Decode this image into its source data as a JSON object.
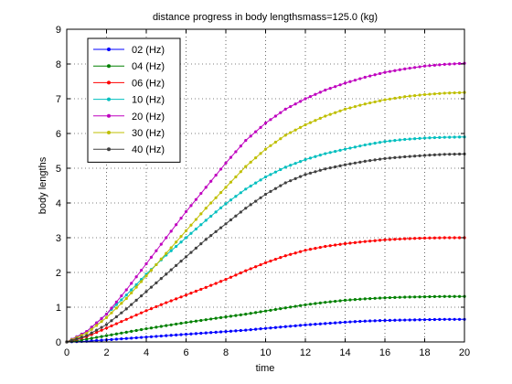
{
  "chart_data": {
    "type": "line",
    "title": "distance progress in body lengthsmass=125.0 (kg)",
    "xlabel": "time",
    "ylabel": "body lengths",
    "xlim": [
      0,
      20
    ],
    "ylim": [
      0,
      9
    ],
    "xticks": [
      "0",
      "2",
      "4",
      "6",
      "8",
      "10",
      "12",
      "14",
      "16",
      "18",
      "20"
    ],
    "yticks": [
      "0",
      "1",
      "2",
      "3",
      "4",
      "5",
      "6",
      "7",
      "8",
      "9"
    ],
    "grid": true,
    "legend_position": "top-left",
    "x": [
      0,
      1,
      2,
      3,
      4,
      5,
      6,
      7,
      8,
      9,
      10,
      11,
      12,
      13,
      14,
      15,
      16,
      17,
      18,
      19,
      20
    ],
    "series": [
      {
        "name": "02 (Hz)",
        "color": "#0000ff",
        "values": [
          0,
          0.02,
          0.06,
          0.1,
          0.14,
          0.18,
          0.22,
          0.26,
          0.3,
          0.34,
          0.39,
          0.44,
          0.49,
          0.53,
          0.57,
          0.6,
          0.62,
          0.63,
          0.64,
          0.65,
          0.65
        ]
      },
      {
        "name": "04 (Hz)",
        "color": "#008000",
        "values": [
          0,
          0.08,
          0.18,
          0.28,
          0.38,
          0.47,
          0.56,
          0.64,
          0.72,
          0.8,
          0.89,
          0.98,
          1.07,
          1.14,
          1.2,
          1.24,
          1.27,
          1.29,
          1.3,
          1.31,
          1.31
        ]
      },
      {
        "name": "06 (Hz)",
        "color": "#ff0000",
        "values": [
          0,
          0.15,
          0.4,
          0.65,
          0.9,
          1.13,
          1.35,
          1.57,
          1.8,
          2.05,
          2.28,
          2.48,
          2.64,
          2.75,
          2.83,
          2.89,
          2.94,
          2.97,
          2.99,
          3.0,
          3.0
        ]
      },
      {
        "name": "10 (Hz)",
        "color": "#00bfbf",
        "values": [
          0,
          0.3,
          0.8,
          1.35,
          1.95,
          2.5,
          3.0,
          3.5,
          3.98,
          4.4,
          4.75,
          5.03,
          5.25,
          5.42,
          5.55,
          5.67,
          5.77,
          5.83,
          5.87,
          5.89,
          5.9
        ]
      },
      {
        "name": "20 (Hz)",
        "color": "#bf00bf",
        "values": [
          0,
          0.3,
          0.8,
          1.5,
          2.25,
          3.0,
          3.75,
          4.45,
          5.15,
          5.8,
          6.3,
          6.7,
          7.0,
          7.25,
          7.45,
          7.62,
          7.76,
          7.86,
          7.94,
          7.99,
          8.02
        ]
      },
      {
        "name": "30 (Hz)",
        "color": "#bfbf00",
        "values": [
          0,
          0.25,
          0.7,
          1.25,
          1.9,
          2.55,
          3.2,
          3.85,
          4.45,
          5.05,
          5.55,
          5.95,
          6.25,
          6.5,
          6.7,
          6.85,
          6.97,
          7.06,
          7.12,
          7.16,
          7.18
        ]
      },
      {
        "name": "40 (Hz)",
        "color": "#404040",
        "values": [
          0,
          0.18,
          0.5,
          0.95,
          1.45,
          1.95,
          2.45,
          2.95,
          3.4,
          3.85,
          4.25,
          4.58,
          4.82,
          4.98,
          5.1,
          5.2,
          5.28,
          5.33,
          5.37,
          5.4,
          5.41
        ]
      }
    ]
  }
}
